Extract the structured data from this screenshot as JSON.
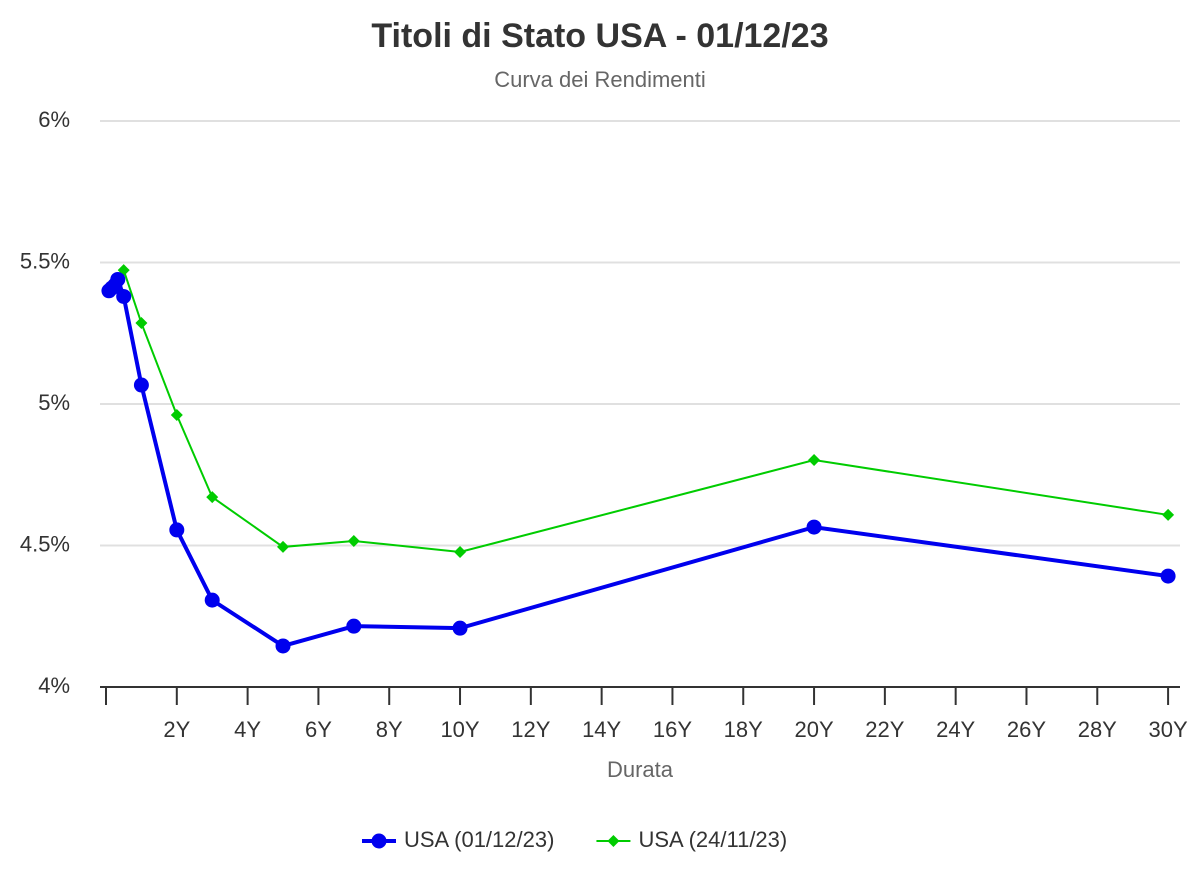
{
  "chart_data": {
    "type": "line",
    "title": "Titoli di Stato USA - 01/12/23",
    "subtitle": "Curva dei Rendimenti",
    "x_label": "Durata",
    "xlim": [
      0,
      30.28
    ],
    "xticks": [
      {
        "value": 2,
        "label": "2Y"
      },
      {
        "value": 4,
        "label": "4Y"
      },
      {
        "value": 6,
        "label": "6Y"
      },
      {
        "value": 8,
        "label": "8Y"
      },
      {
        "value": 10,
        "label": "10Y"
      },
      {
        "value": 12,
        "label": "12Y"
      },
      {
        "value": 14,
        "label": "14Y"
      },
      {
        "value": 16,
        "label": "16Y"
      },
      {
        "value": 18,
        "label": "18Y"
      },
      {
        "value": 20,
        "label": "20Y"
      },
      {
        "value": 22,
        "label": "22Y"
      },
      {
        "value": 24,
        "label": "24Y"
      },
      {
        "value": 26,
        "label": "26Y"
      },
      {
        "value": 28,
        "label": "28Y"
      },
      {
        "value": 30,
        "label": "30Y"
      }
    ],
    "ylim": [
      4,
      6
    ],
    "yticks": [
      {
        "value": 4,
        "label": "4%"
      },
      {
        "value": 4.5,
        "label": "4.5%"
      },
      {
        "value": 5,
        "label": "5%"
      },
      {
        "value": 5.5,
        "label": "5.5%"
      },
      {
        "value": 6,
        "label": "6%"
      }
    ],
    "grid": true,
    "legend": "bottom",
    "x": [
      0.083,
      0.167,
      0.25,
      0.333,
      0.5,
      1,
      2,
      3,
      5,
      7,
      10,
      20,
      30
    ],
    "series": [
      {
        "name": "USA (01/12/23)",
        "color": "#0000ee",
        "marker": "circle",
        "values": [
          5.4,
          5.41,
          5.42,
          5.44,
          5.38,
          5.067,
          4.555,
          4.307,
          4.145,
          4.215,
          4.208,
          4.565,
          4.392
        ]
      },
      {
        "name": "USA (24/11/23)",
        "color": "#00cc00",
        "marker": "diamond",
        "values": [
          5.406,
          5.41,
          5.42,
          5.43,
          5.473,
          5.286,
          4.961,
          4.671,
          4.495,
          4.516,
          4.477,
          4.802,
          4.608
        ]
      }
    ]
  }
}
